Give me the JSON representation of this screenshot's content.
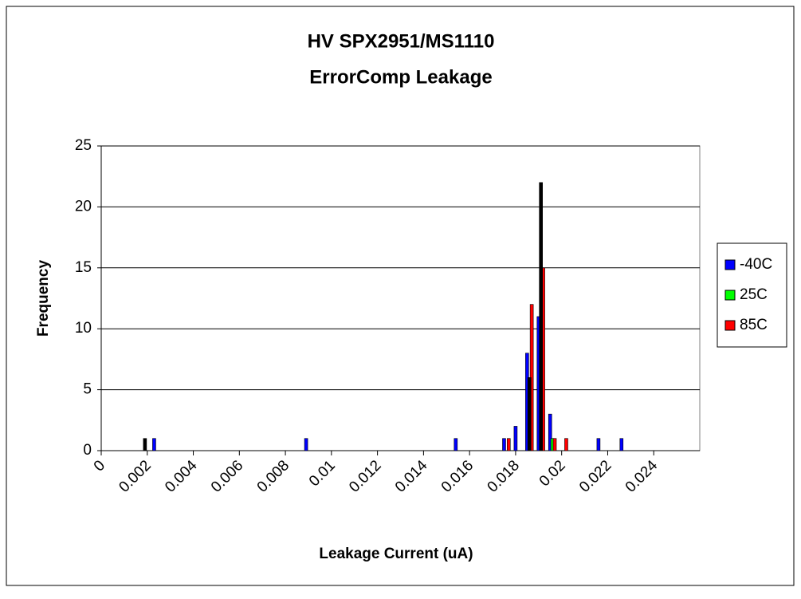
{
  "chart_data": {
    "type": "histogram-bars",
    "title": "HV SPX2951/MS1110",
    "subtitle": "ErrorComp Leakage",
    "x_label": "Leakage Current (uA)",
    "y_label": "Frequency",
    "series": [
      {
        "name": "-40C",
        "color": "#0000ff",
        "x": [
          0.0023,
          0.0089,
          0.0154,
          0.0175,
          0.018,
          0.0185,
          0.019,
          0.0195,
          0.0216,
          0.0226
        ],
        "values": [
          1,
          1,
          1,
          1,
          2,
          8,
          11,
          3,
          1,
          1
        ]
      },
      {
        "name": "25C",
        "color": "#00ff00",
        "x": [
          0.0196
        ],
        "values": [
          1
        ]
      },
      {
        "name": "85C",
        "color": "#ff0000",
        "x": [
          0.0177,
          0.0187,
          0.0192,
          0.0197,
          0.0202
        ],
        "values": [
          1,
          12,
          15,
          1,
          1
        ]
      },
      {
        "color": "#000000",
        "x": [
          0.0019,
          0.0186,
          0.0191
        ],
        "values": [
          1,
          6,
          22
        ]
      }
    ],
    "xlim": [
      0,
      0.026
    ],
    "xticks": [
      0,
      0.002,
      0.004,
      0.006,
      0.008,
      0.01,
      0.012,
      0.014,
      0.016,
      0.018,
      0.02,
      0.022,
      0.024
    ],
    "ylim": [
      0,
      25
    ],
    "yticks": [
      0,
      5,
      10,
      15,
      20,
      25
    ],
    "grid": true,
    "legend": "right"
  }
}
